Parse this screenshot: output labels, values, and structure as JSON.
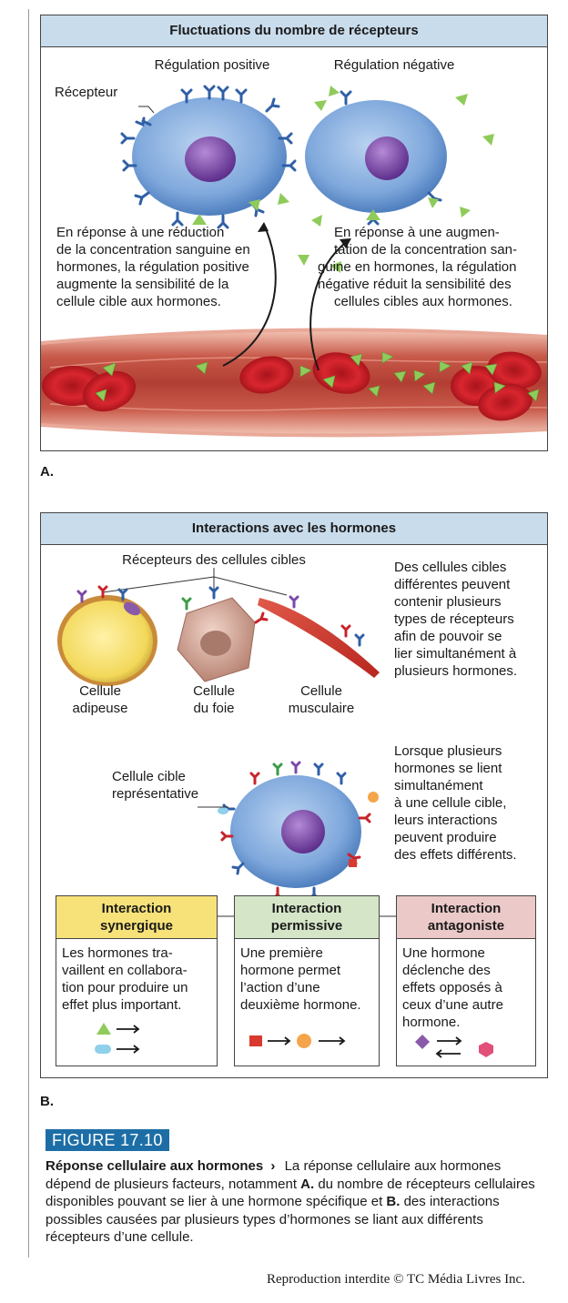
{
  "panel_a": {
    "title": "Fluctuations du nombre de récepteurs",
    "up_label": "Régulation positive",
    "down_label": "Régulation négative",
    "receptor_label": "Récepteur",
    "up_text": [
      "En réponse à une réduction",
      "de la concentration sanguine en",
      "hormones, la régulation positive",
      "augmente la sensibilité de la",
      "cellule cible aux hormones."
    ],
    "down_text": [
      "En réponse à une augmen-",
      "tation de la concentration san-",
      "guine en hormones, la régulation",
      "négative réduit la sensibilité des",
      "cellules cibles aux hormones."
    ],
    "letter": "A."
  },
  "panel_b": {
    "title": "Interactions avec les hormones",
    "receptors_label": "Récepteurs des cellules cibles",
    "cells": [
      {
        "line1": "Cellule",
        "line2": "adipeuse"
      },
      {
        "line1": "Cellule",
        "line2": "du foie"
      },
      {
        "line1": "Cellule",
        "line2": "musculaire"
      }
    ],
    "multi_text": [
      "Des cellules cibles",
      "différentes peuvent",
      "contenir plusieurs",
      "types de récepteurs",
      "afin de pouvoir se",
      "lier simultanément à",
      "plusieurs hormones."
    ],
    "rep_label": [
      "Cellule cible",
      "représentative"
    ],
    "bind_text": [
      "Lorsque plusieurs",
      "hormones se lient",
      "simultanément",
      "à une cellule cible,",
      "leurs interactions",
      "peuvent produire",
      "des effets différents."
    ],
    "boxes": [
      {
        "title1": "Interaction",
        "title2": "synergique",
        "color": "#f7e27a",
        "text": [
          "Les hormones tra-",
          "vaillent en collabora-",
          "tion pour produire un",
          "effet plus important."
        ]
      },
      {
        "title1": "Interaction",
        "title2": "permissive",
        "color": "#d5e6c8",
        "text": [
          "Une première",
          "hormone permet",
          "l’action d’une",
          "deuxième hormone."
        ]
      },
      {
        "title1": "Interaction",
        "title2": "antagoniste",
        "color": "#ecc9c9",
        "text": [
          "Une hormone",
          "déclenche des",
          "effets opposés à",
          "ceux d’une autre",
          "hormone."
        ]
      }
    ],
    "letter": "B."
  },
  "figure": {
    "badge": "FIGURE 17.10",
    "title": "Réponse cellulaire aux hormones",
    "chevron": "›",
    "text_1": "La réponse cellulaire aux hormones dépend de plusieurs facteurs, notamment",
    "bold_a": "A.",
    "text_2": "du nombre de récepteurs cellulaires disponibles pouvant se lier à une hormone spécifique et",
    "bold_b": "B.",
    "text_3": "des interactions possibles causées par plusieurs types d’hormones se liant aux différents récepteurs d’une cellule."
  },
  "copyright": "Reproduction interdite © TC Média Livres Inc.",
  "colors": {
    "header_blue": "#c9dcec",
    "badge_blue": "#1d6ea6",
    "cell_blue": "#7fa8dc",
    "nucleus": "#7a4aa6",
    "hormone_green": "#8fcb5a",
    "rbc_red": "#c8232b"
  }
}
